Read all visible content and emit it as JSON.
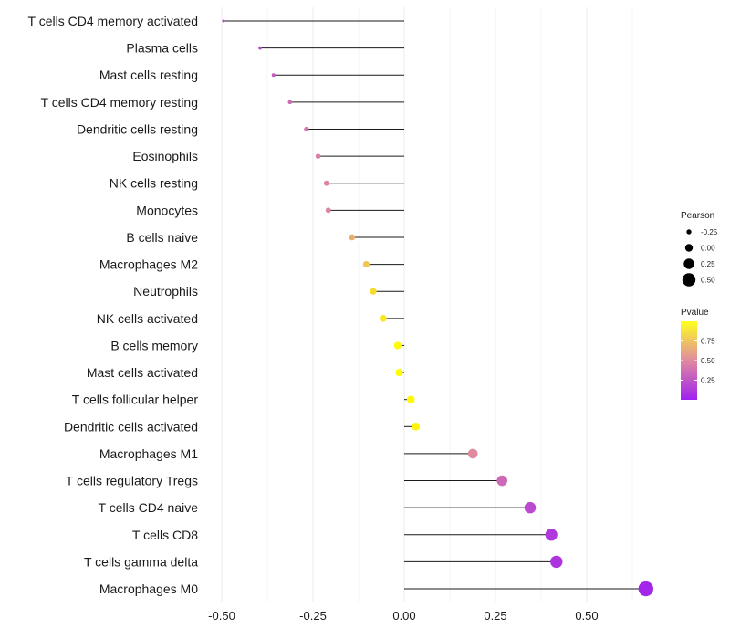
{
  "chart_data": {
    "type": "lollipop",
    "title": "",
    "xlabel": "",
    "ylabel": "",
    "xlim": [
      -0.5,
      0.67
    ],
    "xticks": [
      "-0.50",
      "-0.25",
      "0.00",
      "0.25",
      "0.50"
    ],
    "xtick_values": [
      -0.5,
      -0.25,
      0.0,
      0.25,
      0.5
    ],
    "grid": true,
    "categories": [
      "T cells CD4 memory activated",
      "Plasma cells",
      "Mast cells resting",
      "T cells CD4 memory resting",
      "Dendritic cells resting",
      "Eosinophils",
      "NK cells resting",
      "Monocytes",
      "B cells naive",
      "Macrophages M2",
      "Neutrophils",
      "NK cells activated",
      "B cells memory",
      "Mast cells activated",
      "T cells follicular helper",
      "Dendritic cells activated",
      "Macrophages M1",
      "T cells regulatory  Tregs ",
      "T cells CD4 naive",
      "T cells CD8",
      "T cells gamma delta",
      "Macrophages M0"
    ],
    "values": [
      -0.495,
      -0.395,
      -0.358,
      -0.313,
      -0.268,
      -0.236,
      -0.213,
      -0.208,
      -0.143,
      -0.104,
      -0.085,
      -0.058,
      -0.018,
      -0.014,
      0.018,
      0.032,
      0.188,
      0.268,
      0.345,
      0.403,
      0.417,
      0.662
    ],
    "pvalues": [
      0.15,
      0.2,
      0.28,
      0.35,
      0.4,
      0.45,
      0.48,
      0.48,
      0.65,
      0.75,
      0.85,
      0.9,
      0.98,
      0.99,
      0.98,
      0.95,
      0.5,
      0.35,
      0.2,
      0.12,
      0.1,
      0.03
    ],
    "legend": {
      "size_title": "Pearson",
      "size_labels": [
        "-0.25",
        "0.00",
        "0.25",
        "0.50"
      ],
      "size_values": [
        -0.25,
        0.0,
        0.25,
        0.5
      ],
      "color_title": "Pvalue",
      "color_labels": [
        "0.75",
        "0.50",
        "0.25"
      ],
      "color_values": [
        0.75,
        0.5,
        0.25
      ],
      "color_low": "#a020f0",
      "color_high": "#ffff00",
      "placement": "right"
    }
  }
}
